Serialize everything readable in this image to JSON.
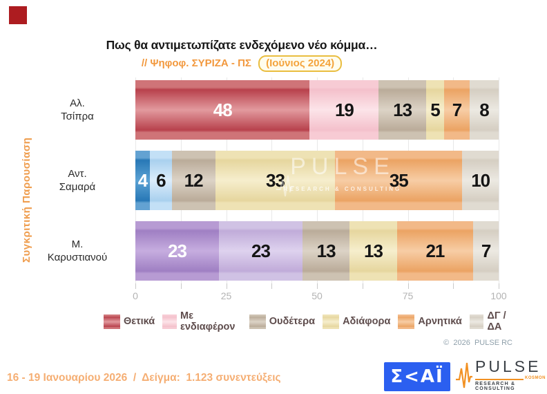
{
  "title": "Πως θα αντιμετωπίζατε ενδεχόμενο νέο κόμμα…",
  "subtitle": {
    "prefix": "// Ψηφοφ. ΣΥΡΙΖΑ - ΠΣ",
    "badge": "(Ιούνιος 2024)"
  },
  "side_label": "Συγκριτική Παρουσίαση",
  "chart_data": {
    "type": "bar",
    "orientation": "horizontal",
    "stacked": true,
    "title": "Πως θα αντιμετωπίζατε ενδεχόμενο νέο κόμμα…",
    "subtitle": "// Ψηφοφ. ΣΥΡΙΖΑ - ΠΣ (Ιούνιος 2024)",
    "categories": [
      "Αλ. Τσίπρα",
      "Αντ. Σαμαρά",
      "Μ. Καρυστιανού"
    ],
    "category_label_lines": [
      [
        "Αλ.",
        "Τσίπρα"
      ],
      [
        "Αντ.",
        "Σαμαρά"
      ],
      [
        "Μ.",
        "Καρυστιανού"
      ]
    ],
    "series": [
      {
        "name": "Θετικά",
        "values": [
          48,
          4,
          23
        ]
      },
      {
        "name": "Με ενδιαφέρον",
        "values": [
          19,
          6,
          23
        ]
      },
      {
        "name": "Ουδέτερα",
        "values": [
          13,
          12,
          13
        ]
      },
      {
        "name": "Αδιάφορα",
        "values": [
          5,
          33,
          13
        ]
      },
      {
        "name": "Αρνητικά",
        "values": [
          7,
          35,
          21
        ]
      },
      {
        "name": "ΔΓ / ΔΑ",
        "values": [
          8,
          10,
          7
        ]
      }
    ],
    "xlim": [
      0,
      100
    ],
    "x_ticks": [
      0,
      25,
      50,
      75,
      100
    ],
    "minor_tick_step": 12.5,
    "grid": true,
    "legend_position": "bottom",
    "segment_colors": [
      [
        "red",
        "pink",
        "taupe",
        "yellow",
        "orange",
        "beige"
      ],
      [
        "blue",
        "lightblue",
        "taupe",
        "yellow",
        "orange",
        "beige"
      ],
      [
        "purple",
        "lightpurple",
        "taupe",
        "yellow",
        "orange",
        "beige"
      ]
    ],
    "palette": {
      "red": {
        "band": "#cf7478",
        "dark": "#b8414c",
        "light": "#e29a9e",
        "text": "#ffffff"
      },
      "pink": {
        "band": "#f7cbd4",
        "dark": "#f4c0cb",
        "light": "#fce4e9",
        "text": "#151515"
      },
      "blue": {
        "band": "#63a2d2",
        "dark": "#2878b6",
        "light": "#5ba2d4",
        "text": "#ffffff"
      },
      "lightblue": {
        "band": "#c3e0f6",
        "dark": "#a9d0ee",
        "light": "#dcedfb",
        "text": "#151515"
      },
      "purple": {
        "band": "#b79bd3",
        "dark": "#9f7fc3",
        "light": "#c6addf",
        "text": "#ffffff"
      },
      "lightpurple": {
        "band": "#d0c2e4",
        "dark": "#c0abd9",
        "light": "#ded2ee",
        "text": "#151515"
      },
      "taupe": {
        "band": "#cdc2b2",
        "dark": "#baab99",
        "light": "#dcd3c6",
        "text": "#151515"
      },
      "yellow": {
        "band": "#eee2b4",
        "dark": "#e6d69e",
        "light": "#f6eecd",
        "text": "#151515"
      },
      "orange": {
        "band": "#f2b988",
        "dark": "#eba363",
        "light": "#f7cda5",
        "text": "#151515"
      },
      "beige": {
        "band": "#e0dbd1",
        "dark": "#d5cec2",
        "light": "#ece9e2",
        "text": "#151515"
      }
    }
  },
  "legend": [
    {
      "label": "Θετικά",
      "color": "red"
    },
    {
      "label": "Με ενδιαφέρον",
      "color": "pink"
    },
    {
      "label": "Ουδέτερα",
      "color": "taupe"
    },
    {
      "label": "Αδιάφορα",
      "color": "yellow"
    },
    {
      "label": "Αρνητικά",
      "color": "orange"
    },
    {
      "label": "ΔΓ / ΔΑ",
      "color": "beige"
    }
  ],
  "watermark": {
    "line1": "PULSE",
    "line2": "RESEARCH & CONSULTING"
  },
  "copyright": "©  2026  PULSE RC",
  "footer": {
    "fieldwork": "16 - 19 Ιανουαρίου 2026  /  Δείγμα:  1.123 συνεντεύξεις"
  },
  "logos": {
    "skai": "Σ<ΑΪ",
    "pulse_word": "PULSE",
    "pulse_small": "KOSMON",
    "pulse_sub": "RESEARCH & CONSULTING"
  },
  "colors": {
    "accent_orange": "#f2983d",
    "badge_border": "#e9bd3f",
    "footer_orange": "#f5ae73",
    "skai_blue": "#2b5ff0",
    "pulse_orange": "#f29123",
    "corner_red": "#ad1c20"
  }
}
